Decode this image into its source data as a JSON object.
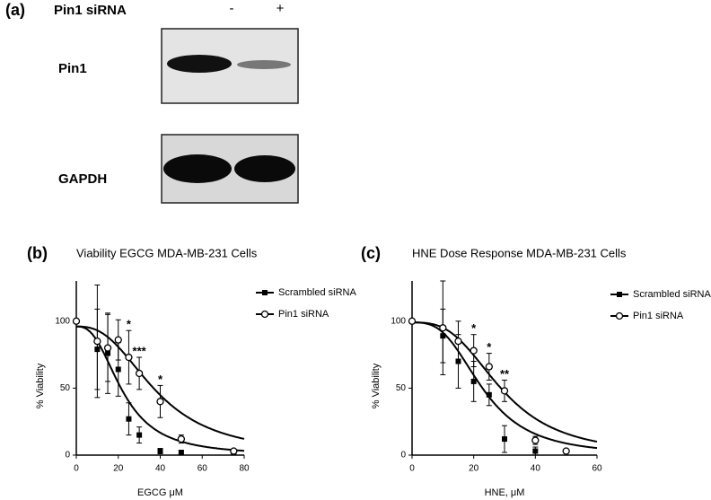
{
  "blot": {
    "panel": "(a)",
    "treatment": "Pin1 siRNA",
    "lanes": [
      "-",
      "+"
    ],
    "rows": [
      "Pin1",
      "GAPDH"
    ]
  },
  "chart_data": [
    {
      "type": "scatter",
      "panel": "(b)",
      "title": "Viability EGCG MDA-MB-231 Cells",
      "xlabel": "EGCG μM",
      "ylabel": "% Viability",
      "xlim": [
        0,
        80
      ],
      "xticks": [
        0,
        20,
        40,
        60,
        80
      ],
      "ylim": [
        0,
        130
      ],
      "yticks": [
        0,
        50,
        100
      ],
      "series": [
        {
          "name": "Scrambled siRNA",
          "color": "#000000",
          "marker": "square",
          "x": [
            0,
            10,
            15,
            20,
            25,
            30,
            40,
            50,
            75
          ],
          "values": [
            100,
            79,
            76,
            64,
            27,
            15,
            3,
            2,
            2
          ],
          "errors": [
            0,
            30,
            30,
            20,
            12,
            6,
            2,
            1,
            1
          ],
          "top": 96,
          "ic50": 22,
          "hill": 2.6
        },
        {
          "name": "Pin1 siRNA",
          "color": "#000000",
          "marker": "circle",
          "x": [
            0,
            10,
            15,
            20,
            25,
            30,
            40,
            50,
            75
          ],
          "values": [
            100,
            85,
            80,
            86,
            73,
            61,
            40,
            12,
            3
          ],
          "errors": [
            0,
            42,
            25,
            15,
            20,
            12,
            12,
            3,
            1
          ],
          "top": 96,
          "ic50": 38,
          "hill": 2.6
        }
      ],
      "annotations": [
        {
          "x": 25,
          "text": "*"
        },
        {
          "x": 30,
          "text": "***"
        },
        {
          "x": 40,
          "text": "*"
        }
      ]
    },
    {
      "type": "scatter",
      "panel": "(c)",
      "title": "HNE Dose Response MDA-MB-231 Cells",
      "xlabel": "HNE, μM",
      "ylabel": "% Viability",
      "xlim": [
        0,
        60
      ],
      "xticks": [
        0,
        20,
        40,
        60
      ],
      "ylim": [
        0,
        130
      ],
      "yticks": [
        0,
        50,
        100
      ],
      "series": [
        {
          "name": "Scrambled siRNA",
          "color": "#000000",
          "marker": "square",
          "x": [
            0,
            10,
            15,
            20,
            25,
            30,
            40
          ],
          "values": [
            100,
            89,
            70,
            55,
            45,
            12,
            3
          ],
          "errors": [
            0,
            20,
            20,
            15,
            8,
            10,
            3
          ],
          "top": 99,
          "ic50": 23,
          "hill": 3
        },
        {
          "name": "Pin1 siRNA",
          "color": "#000000",
          "marker": "circle",
          "x": [
            0,
            10,
            15,
            20,
            25,
            30,
            40,
            50
          ],
          "values": [
            100,
            95,
            85,
            78,
            66,
            48,
            11,
            3
          ],
          "errors": [
            0,
            35,
            15,
            12,
            10,
            8,
            3,
            1
          ],
          "top": 99,
          "ic50": 29,
          "hill": 3
        }
      ],
      "annotations": [
        {
          "x": 20,
          "text": "*"
        },
        {
          "x": 25,
          "text": "*"
        },
        {
          "x": 30,
          "text": "**"
        }
      ]
    }
  ]
}
